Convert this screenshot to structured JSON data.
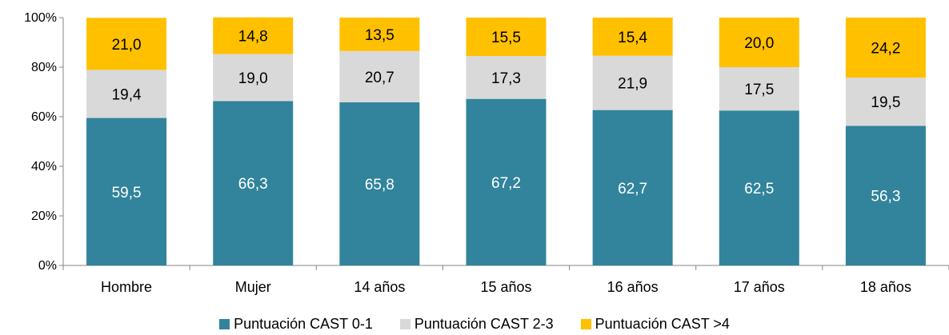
{
  "chart_data": {
    "type": "bar",
    "stacked": true,
    "categories": [
      "Hombre",
      "Mujer",
      "14 años",
      "15 años",
      "16 años",
      "17 años",
      "18 años"
    ],
    "series": [
      {
        "name": "Puntuación CAST 0-1",
        "color": "#31849B",
        "label_color": "#FFFFFF",
        "values": [
          59.5,
          66.3,
          65.8,
          67.2,
          62.7,
          62.5,
          56.3
        ]
      },
      {
        "name": "Puntuación CAST 2-3",
        "color": "#D9D9D9",
        "label_color": "#000000",
        "values": [
          19.4,
          19.0,
          20.7,
          17.3,
          21.9,
          17.5,
          19.5
        ]
      },
      {
        "name": "Puntuación CAST >4",
        "color": "#FFC000",
        "label_color": "#000000",
        "values": [
          21.0,
          14.8,
          13.5,
          15.5,
          15.4,
          20.0,
          24.2
        ]
      }
    ],
    "y_ticks": [
      "0%",
      "20%",
      "40%",
      "60%",
      "80%",
      "100%"
    ],
    "ylim": [
      0,
      100
    ],
    "grid": false,
    "legend_position": "bottom"
  }
}
